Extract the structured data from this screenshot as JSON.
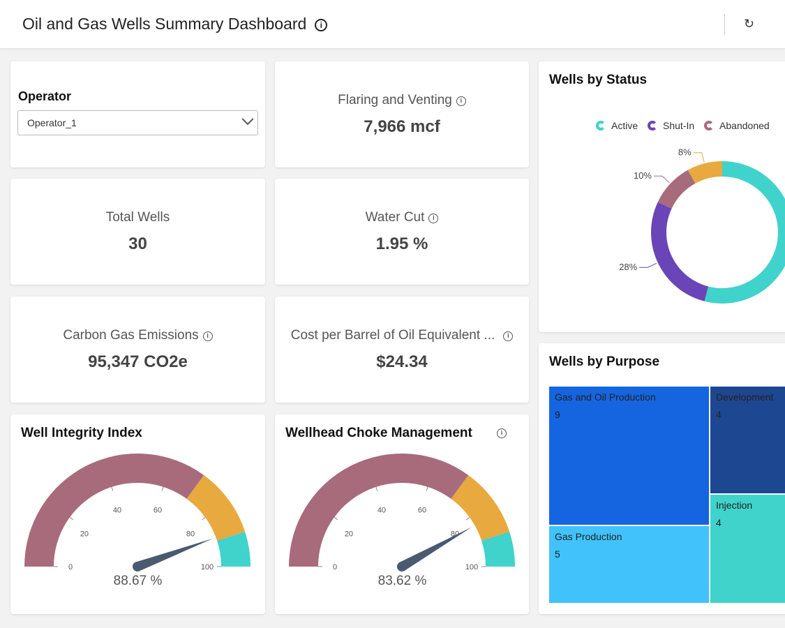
{
  "header": {
    "title": "Oil and Gas Wells Summary Dashboard",
    "info_icon": "info-icon",
    "refresh_icon": "refresh-icon"
  },
  "operator": {
    "label": "Operator",
    "value": "Operator_1"
  },
  "kpis": {
    "flaring": {
      "label": "Flaring and Venting",
      "value": "7,966 mcf"
    },
    "total_wells": {
      "label": "Total Wells",
      "value": "30"
    },
    "water_cut": {
      "label": "Water Cut",
      "value": "1.95 %"
    },
    "carbon": {
      "label": "Carbon Gas Emissions",
      "value": "95,347 CO2e"
    },
    "cost": {
      "label": "Cost per Barrel of Oil Equivalent ...",
      "value": "$24.34"
    }
  },
  "gauges": [
    {
      "title": "Well Integrity Index",
      "value": 88.67,
      "value_label": "88.67 %",
      "ticks": [
        "0",
        "20",
        "40",
        "60",
        "80",
        "100"
      ]
    },
    {
      "title": "Wellhead Choke Management",
      "value": 83.62,
      "value_label": "83.62 %",
      "ticks": [
        "0",
        "20",
        "40",
        "60",
        "80",
        "100"
      ]
    }
  ],
  "gauge_bands": [
    {
      "from": 0,
      "to": 70,
      "color": "#a86b7c"
    },
    {
      "from": 70,
      "to": 90,
      "color": "#e8a93e"
    },
    {
      "from": 90,
      "to": 100,
      "color": "#3fd3cb"
    }
  ],
  "chart_data": [
    {
      "type": "pie",
      "title": "Wells by Status",
      "legend_position": "top",
      "slices": [
        {
          "name": "Active",
          "value": 54,
          "color": "#3fd3cb"
        },
        {
          "name": "Shut-In",
          "value": 28,
          "label": "28%",
          "color": "#6a45b8"
        },
        {
          "name": "Abandoned",
          "value": 10,
          "label": "10%",
          "color": "#a86b7c"
        },
        {
          "name": "",
          "value": 8,
          "label": "8%",
          "color": "#e8a93e"
        }
      ]
    },
    {
      "type": "treemap",
      "title": "Wells by Purpose",
      "items": [
        {
          "name": "Gas and Oil Production",
          "value": 9,
          "value_label": "9",
          "color": "#1565e0"
        },
        {
          "name": "Gas Production",
          "value": 5,
          "value_label": "5",
          "color": "#42c2fb"
        },
        {
          "name": "Development",
          "value": 4,
          "value_label": "4",
          "color": "#1e4791"
        },
        {
          "name": "Injection",
          "value": 4,
          "value_label": "4",
          "color": "#3fd3cb"
        }
      ]
    }
  ]
}
